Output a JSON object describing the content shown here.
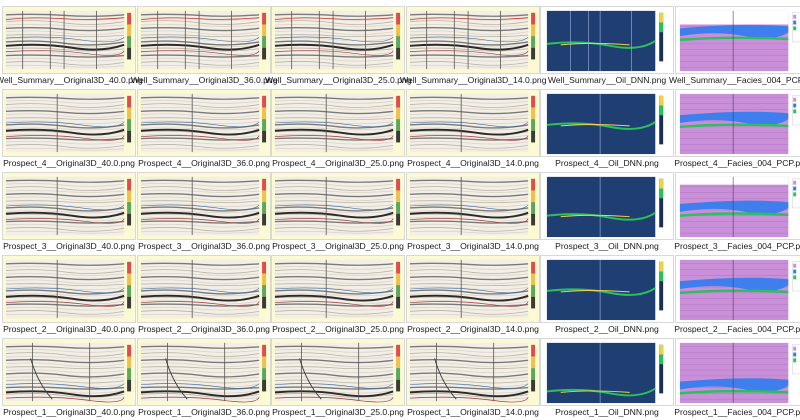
{
  "thumbnails": [
    [
      {
        "file": "Well_Summary__Original3D_40.0.png",
        "kind": "seismic",
        "variant": "summary"
      },
      {
        "file": "Well_Summary__Original3D_36.0.png",
        "kind": "seismic",
        "variant": "summary"
      },
      {
        "file": "Well_Summary__Original3D_25.0.png",
        "kind": "seismic",
        "variant": "summary"
      },
      {
        "file": "Well_Summary__Original3D_14.0.png",
        "kind": "seismic",
        "variant": "summary"
      },
      {
        "file": "Well_Summary__Oil_DNN.png",
        "kind": "oil",
        "variant": "summary"
      },
      {
        "file": "Well_Summary__Facies_004_PCP.png",
        "kind": "facies",
        "variant": "summary"
      }
    ],
    [
      {
        "file": "Prospect_4__Original3D_40.0.png",
        "kind": "seismic",
        "variant": "p4"
      },
      {
        "file": "Prospect_4__Original3D_36.0.png",
        "kind": "seismic",
        "variant": "p4"
      },
      {
        "file": "Prospect_4__Original3D_25.0.png",
        "kind": "seismic",
        "variant": "p4"
      },
      {
        "file": "Prospect_4__Original3D_14.0.png",
        "kind": "seismic",
        "variant": "p4"
      },
      {
        "file": "Prospect_4__Oil_DNN.png",
        "kind": "oil",
        "variant": "p4"
      },
      {
        "file": "Prospect_4__Facies_004_PCP.png",
        "kind": "facies",
        "variant": "p4"
      }
    ],
    [
      {
        "file": "Prospect_3__Original3D_40.0.png",
        "kind": "seismic",
        "variant": "p3"
      },
      {
        "file": "Prospect_3__Original3D_36.0.png",
        "kind": "seismic",
        "variant": "p3"
      },
      {
        "file": "Prospect_3__Original3D_25.0.png",
        "kind": "seismic",
        "variant": "p3"
      },
      {
        "file": "Prospect_3__Original3D_14.0.png",
        "kind": "seismic",
        "variant": "p3"
      },
      {
        "file": "Prospect_3__Oil_DNN.png",
        "kind": "oil",
        "variant": "p3"
      },
      {
        "file": "Prospect_3__Facies_004_PCP.png",
        "kind": "facies",
        "variant": "p3"
      }
    ],
    [
      {
        "file": "Prospect_2__Original3D_40.0.png",
        "kind": "seismic",
        "variant": "p2"
      },
      {
        "file": "Prospect_2__Original3D_36.0.png",
        "kind": "seismic",
        "variant": "p2"
      },
      {
        "file": "Prospect_2__Original3D_25.0.png",
        "kind": "seismic",
        "variant": "p2"
      },
      {
        "file": "Prospect_2__Original3D_14.0.png",
        "kind": "seismic",
        "variant": "p2"
      },
      {
        "file": "Prospect_2__Oil_DNN.png",
        "kind": "oil",
        "variant": "p2"
      },
      {
        "file": "Prospect_2__Facies_004_PCP.png",
        "kind": "facies",
        "variant": "p2"
      }
    ],
    [
      {
        "file": "Prospect_1__Original3D_40.0.png",
        "kind": "seismic",
        "variant": "p1"
      },
      {
        "file": "Prospect_1__Original3D_36.0.png",
        "kind": "seismic",
        "variant": "p1"
      },
      {
        "file": "Prospect_1__Original3D_25.0.png",
        "kind": "seismic",
        "variant": "p1"
      },
      {
        "file": "Prospect_1__Original3D_14.0.png",
        "kind": "seismic",
        "variant": "p1"
      },
      {
        "file": "Prospect_1__Oil_DNN.png",
        "kind": "oil",
        "variant": "p1"
      },
      {
        "file": "Prospect_1__Facies_004_PCP.png",
        "kind": "facies",
        "variant": "p1"
      }
    ]
  ],
  "colors": {
    "seismic_bg": "#f3efe6",
    "plot_frame": "#fbfad2",
    "oil_bg": "#1f3f73",
    "facies_purple": "#c98fd8",
    "facies_blue": "#2f7df0",
    "facies_green": "#29c25a"
  }
}
